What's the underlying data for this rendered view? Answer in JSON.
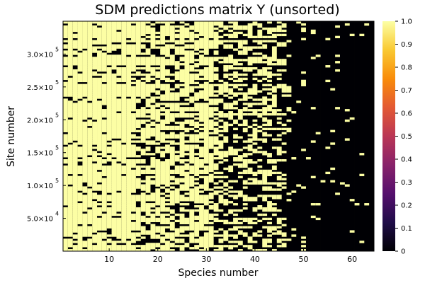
{
  "chart_data": {
    "type": "heatmap",
    "title": "SDM predictions matrix Y (unsorted)",
    "xlabel": "Species number",
    "ylabel": "Site number",
    "x_range": [
      1,
      64
    ],
    "y_range": [
      1,
      350000
    ],
    "x_ticks": [
      {
        "value": 10,
        "label": "10"
      },
      {
        "value": 20,
        "label": "20"
      },
      {
        "value": 30,
        "label": "30"
      },
      {
        "value": 40,
        "label": "40"
      },
      {
        "value": 50,
        "label": "50"
      },
      {
        "value": 60,
        "label": "60"
      }
    ],
    "y_ticks": [
      {
        "value": 50000,
        "mant": "5.0×10",
        "exp": "4"
      },
      {
        "value": 100000,
        "mant": "1.0×10",
        "exp": "5"
      },
      {
        "value": 150000,
        "mant": "1.5×10",
        "exp": "5"
      },
      {
        "value": 200000,
        "mant": "2.0×10",
        "exp": "5"
      },
      {
        "value": 250000,
        "mant": "2.5×10",
        "exp": "5"
      },
      {
        "value": 300000,
        "mant": "3.0×10",
        "exp": "5"
      }
    ],
    "colorbar": {
      "range": [
        0,
        1
      ],
      "ticks": [
        "0",
        "0.1",
        "0.2",
        "0.3",
        "0.4",
        "0.5",
        "0.6",
        "0.7",
        "0.8",
        "0.9",
        "1.0"
      ],
      "stops": [
        "#000004",
        "#1f0c48",
        "#550f6d",
        "#88226a",
        "#ba3655",
        "#e35933",
        "#f98c0a",
        "#f9c932",
        "#fcffa4"
      ]
    },
    "colors": {
      "presence": "#fcfea4",
      "absence": "#000004"
    },
    "presence_by_species": [
      0.96,
      0.94,
      0.92,
      0.93,
      0.86,
      0.95,
      0.9,
      0.84,
      0.93,
      0.85,
      0.92,
      0.88,
      1.0,
      1.0,
      0.82,
      0.74,
      0.68,
      0.66,
      0.72,
      0.7,
      0.75,
      0.78,
      0.7,
      0.67,
      0.69,
      0.72,
      0.74,
      0.73,
      0.7,
      0.95,
      0.72,
      0.52,
      0.48,
      0.55,
      0.47,
      0.45,
      0.5,
      0.46,
      0.48,
      0.42,
      0.44,
      0.47,
      0.46,
      0.42,
      0.4,
      0.35,
      0.06,
      0.04,
      0.03,
      0.05,
      0.02,
      0.04,
      0.03,
      0.02,
      0.06,
      0.03,
      0.05,
      0.02,
      0.04,
      0.03,
      0.02,
      0.03,
      0.02,
      0.03
    ]
  }
}
